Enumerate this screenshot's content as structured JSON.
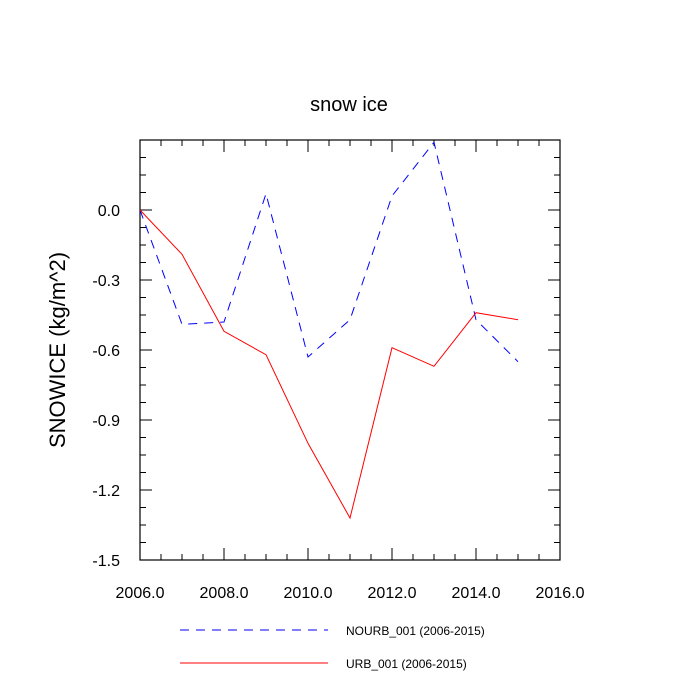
{
  "chart_data": {
    "type": "line",
    "title": "snow ice",
    "xlabel": "",
    "ylabel": "SNOWICE  (kg/m^2)",
    "xlim": [
      2006.0,
      2016.0
    ],
    "ylim": [
      -1.5,
      0.3
    ],
    "x_ticks": [
      2006.0,
      2008.0,
      2010.0,
      2012.0,
      2014.0,
      2016.0
    ],
    "x_tick_labels": [
      "2006.0",
      "2008.0",
      "2010.0",
      "2012.0",
      "2014.0",
      "2016.0"
    ],
    "y_ticks": [
      -1.5,
      -1.2,
      -0.9,
      -0.6,
      -0.3,
      0.0
    ],
    "y_tick_labels": [
      "-1.5",
      "-1.2",
      "-0.9",
      "-0.6",
      "-0.3",
      "0.0"
    ],
    "grid": false,
    "legend_position": "bottom",
    "series": [
      {
        "name": "NOURB_001 (2006-2015)",
        "color": "#0000ff",
        "style": "dashed",
        "x": [
          2006,
          2007,
          2008,
          2009,
          2010,
          2011,
          2012,
          2013,
          2014,
          2015
        ],
        "values": [
          0.0,
          -0.49,
          -0.48,
          0.07,
          -0.63,
          -0.47,
          0.06,
          0.29,
          -0.47,
          -0.65
        ]
      },
      {
        "name": "URB_001 (2006-2015)",
        "color": "#ff0000",
        "style": "solid",
        "x": [
          2006,
          2007,
          2008,
          2009,
          2010,
          2011,
          2012,
          2013,
          2014,
          2015
        ],
        "values": [
          0.0,
          -0.19,
          -0.52,
          -0.62,
          -1.0,
          -1.32,
          -0.59,
          -0.67,
          -0.44,
          -0.47
        ]
      }
    ]
  }
}
